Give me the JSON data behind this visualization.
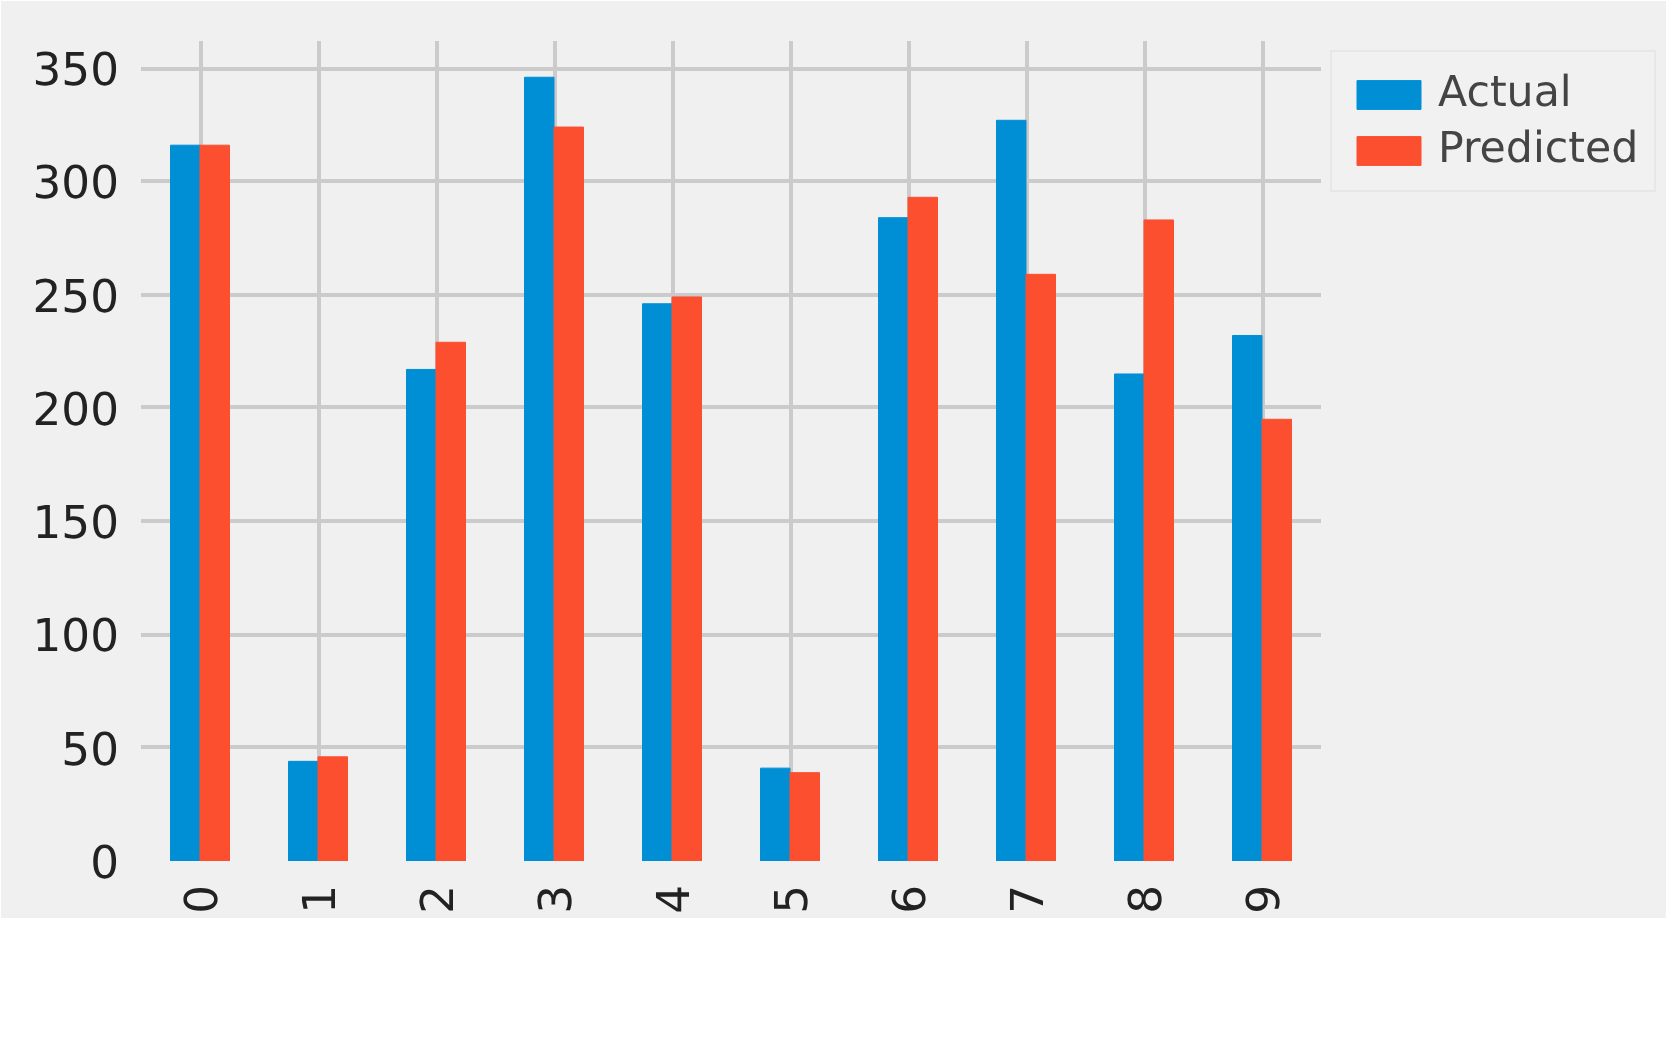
{
  "chart_data": {
    "type": "bar",
    "categories": [
      "0",
      "1",
      "2",
      "3",
      "4",
      "5",
      "6",
      "7",
      "8",
      "9"
    ],
    "series": [
      {
        "name": "Actual",
        "color": "#008fd5",
        "values": [
          316,
          44,
          217,
          346,
          246,
          41,
          284,
          327,
          215,
          232
        ]
      },
      {
        "name": "Predicted",
        "color": "#fc4f30",
        "values": [
          316,
          46,
          229,
          324,
          249,
          39,
          293,
          259,
          283,
          195
        ]
      }
    ],
    "ylim": [
      0,
      362
    ],
    "yticks": [
      0,
      50,
      100,
      150,
      200,
      250,
      300,
      350
    ],
    "grid": true,
    "legend": "top right"
  }
}
